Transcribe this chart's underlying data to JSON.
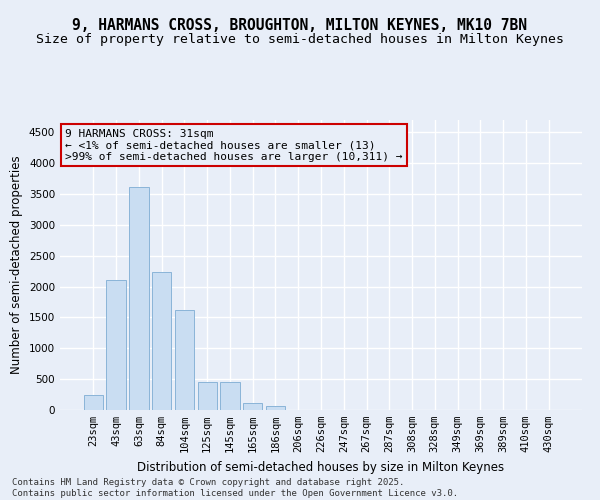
{
  "title_line1": "9, HARMANS CROSS, BROUGHTON, MILTON KEYNES, MK10 7BN",
  "title_line2": "Size of property relative to semi-detached houses in Milton Keynes",
  "xlabel": "Distribution of semi-detached houses by size in Milton Keynes",
  "ylabel": "Number of semi-detached properties",
  "categories": [
    "23sqm",
    "43sqm",
    "63sqm",
    "84sqm",
    "104sqm",
    "125sqm",
    "145sqm",
    "165sqm",
    "186sqm",
    "206sqm",
    "226sqm",
    "247sqm",
    "267sqm",
    "287sqm",
    "308sqm",
    "328sqm",
    "349sqm",
    "369sqm",
    "389sqm",
    "410sqm",
    "430sqm"
  ],
  "values": [
    250,
    2100,
    3620,
    2230,
    1620,
    460,
    460,
    110,
    60,
    0,
    0,
    0,
    0,
    0,
    0,
    0,
    0,
    0,
    0,
    0,
    0
  ],
  "bar_color": "#c9ddf2",
  "bar_edge_color": "#8ab4d8",
  "annotation_box_color": "#cc0000",
  "annotation_text_line1": "9 HARMANS CROSS: 31sqm",
  "annotation_text_line2": "← <1% of semi-detached houses are smaller (13)",
  "annotation_text_line3": ">99% of semi-detached houses are larger (10,311) →",
  "ylim": [
    0,
    4700
  ],
  "yticks": [
    0,
    500,
    1000,
    1500,
    2000,
    2500,
    3000,
    3500,
    4000,
    4500
  ],
  "background_color": "#e8eef8",
  "grid_color": "#ffffff",
  "footer_line1": "Contains HM Land Registry data © Crown copyright and database right 2025.",
  "footer_line2": "Contains public sector information licensed under the Open Government Licence v3.0.",
  "title_fontsize": 10.5,
  "subtitle_fontsize": 9.5,
  "axis_label_fontsize": 8.5,
  "tick_fontsize": 7.5,
  "annotation_fontsize": 8,
  "footer_fontsize": 6.5
}
